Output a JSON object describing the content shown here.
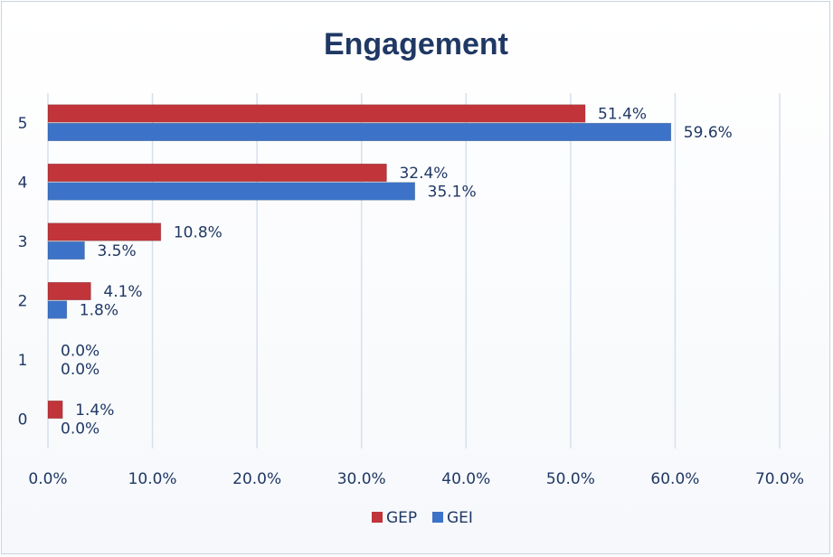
{
  "chart_data": {
    "type": "bar",
    "orientation": "horizontal",
    "title": "Engagement",
    "categories": [
      "5",
      "4",
      "3",
      "2",
      "1",
      "0"
    ],
    "series": [
      {
        "name": "GEP",
        "color": "#c0343a",
        "values": [
          51.4,
          32.4,
          10.8,
          4.1,
          0.0,
          1.4
        ],
        "labels": [
          "51.4%",
          "32.4%",
          "10.8%",
          "4.1%",
          "0.0%",
          "1.4%"
        ]
      },
      {
        "name": "GEI",
        "color": "#3c73c8",
        "values": [
          59.6,
          35.1,
          3.5,
          1.8,
          0.0,
          0.0
        ],
        "labels": [
          "59.6%",
          "35.1%",
          "3.5%",
          "1.8%",
          "0.0%",
          "0.0%"
        ]
      }
    ],
    "x_ticks": [
      "0.0%",
      "10.0%",
      "20.0%",
      "30.0%",
      "40.0%",
      "50.0%",
      "60.0%",
      "70.0%"
    ],
    "xlim": [
      0,
      70
    ],
    "grid": "vertical",
    "legend_position": "bottom",
    "colors": {
      "gridline": "#d6e0ee",
      "text": "#1f3864"
    }
  }
}
